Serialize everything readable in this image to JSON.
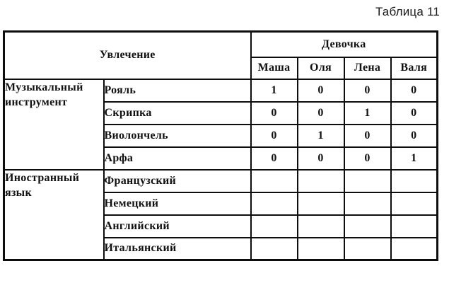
{
  "page_title": "Таблица 11",
  "table": {
    "header": {
      "hobby_label": "Увлечение",
      "girl_label": "Девочка",
      "girls": [
        "Маша",
        "Оля",
        "Лена",
        "Валя"
      ]
    },
    "groups": [
      {
        "label": "Музыкальный инструмент",
        "rows": [
          {
            "item": "Рояль",
            "values": [
              "1",
              "0",
              "0",
              "0"
            ]
          },
          {
            "item": "Скрипка",
            "values": [
              "0",
              "0",
              "1",
              "0"
            ]
          },
          {
            "item": "Виолончель",
            "values": [
              "0",
              "1",
              "0",
              "0"
            ]
          },
          {
            "item": "Арфа",
            "values": [
              "0",
              "0",
              "0",
              "1"
            ]
          }
        ]
      },
      {
        "label": "Иностранный язык",
        "rows": [
          {
            "item": "Французский",
            "values": [
              "",
              "",
              "",
              ""
            ]
          },
          {
            "item": "Немецкий",
            "values": [
              "",
              "",
              "",
              ""
            ]
          },
          {
            "item": "Английский",
            "values": [
              "",
              "",
              "",
              ""
            ]
          },
          {
            "item": "Итальянский",
            "values": [
              "",
              "",
              "",
              ""
            ]
          }
        ]
      }
    ]
  },
  "colors": {
    "border": "#0d0d0d",
    "text": "#111111",
    "background": "#ffffff"
  }
}
